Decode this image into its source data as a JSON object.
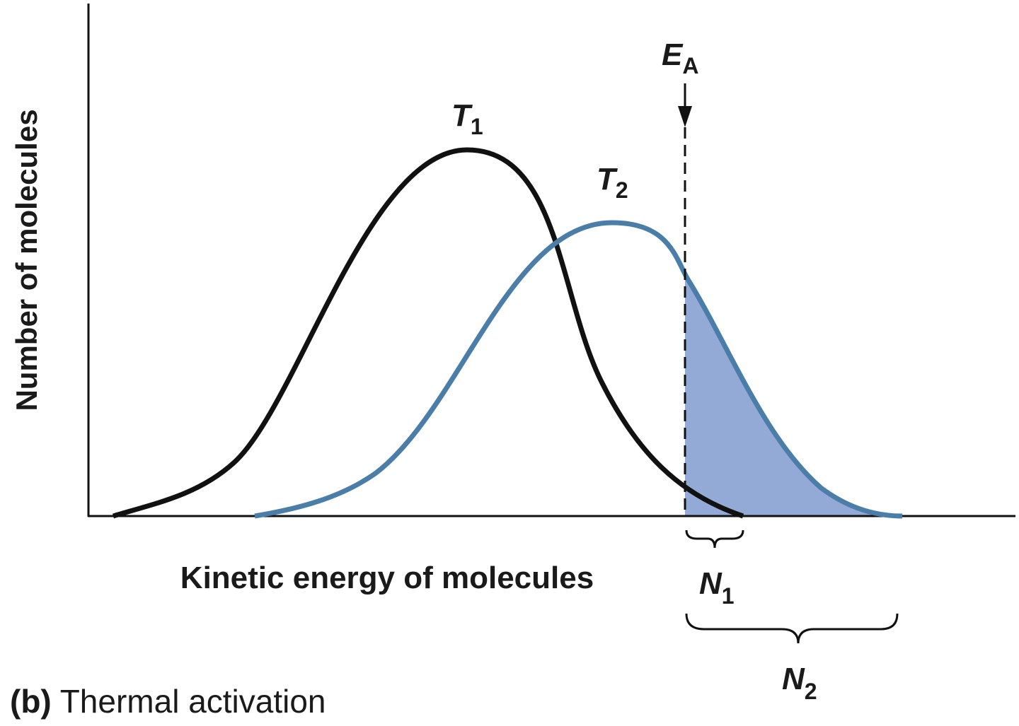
{
  "axes": {
    "y_label": "Number of molecules",
    "x_label": "Kinetic energy of molecules"
  },
  "curves": [
    {
      "label": {
        "main": "T",
        "sub": "1"
      }
    },
    {
      "label": {
        "main": "T",
        "sub": "2"
      }
    }
  ],
  "threshold": {
    "main": "E",
    "sub": "A"
  },
  "brackets": [
    {
      "main": "N",
      "sub": "1"
    },
    {
      "main": "N",
      "sub": "2"
    }
  ],
  "caption": {
    "part": "(b)",
    "text": "Thermal activation"
  }
}
